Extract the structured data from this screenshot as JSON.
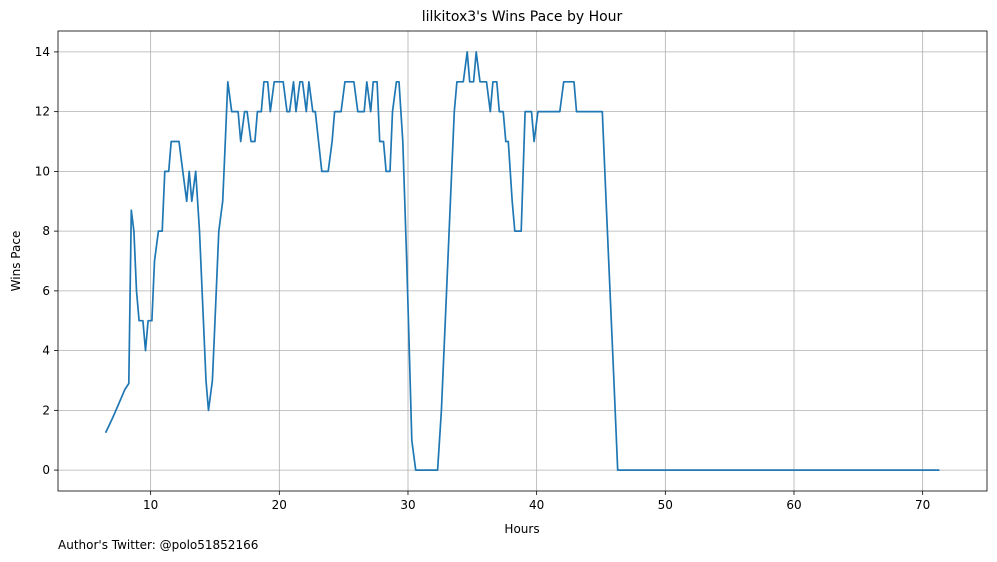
{
  "chart_data": {
    "type": "line",
    "title": "lilkitox3's Wins Pace by Hour",
    "xlabel": "Hours",
    "ylabel": "Wins Pace",
    "xlim": [
      2.8,
      75.0
    ],
    "ylim": [
      -0.7,
      14.7
    ],
    "xticks": [
      10,
      20,
      30,
      40,
      50,
      60,
      70
    ],
    "yticks": [
      0,
      2,
      4,
      6,
      8,
      10,
      12,
      14
    ],
    "grid": true,
    "line_color": "#1f77b4",
    "series": [
      {
        "points": [
          [
            6.5,
            1.25
          ],
          [
            7.0,
            1.7
          ],
          [
            7.5,
            2.2
          ],
          [
            8.0,
            2.7
          ],
          [
            8.3,
            2.9
          ],
          [
            8.5,
            8.7
          ],
          [
            8.7,
            8.0
          ],
          [
            8.9,
            6.0
          ],
          [
            9.1,
            5.0
          ],
          [
            9.4,
            5.0
          ],
          [
            9.6,
            4.0
          ],
          [
            9.8,
            5.0
          ],
          [
            10.1,
            5.0
          ],
          [
            10.3,
            7.0
          ],
          [
            10.6,
            8.0
          ],
          [
            10.9,
            8.0
          ],
          [
            11.1,
            10.0
          ],
          [
            11.4,
            10.0
          ],
          [
            11.6,
            11.0
          ],
          [
            12.2,
            11.0
          ],
          [
            12.5,
            10.0
          ],
          [
            12.8,
            9.0
          ],
          [
            13.0,
            10.0
          ],
          [
            13.2,
            9.0
          ],
          [
            13.5,
            10.0
          ],
          [
            13.8,
            8.0
          ],
          [
            14.1,
            5.0
          ],
          [
            14.3,
            3.0
          ],
          [
            14.5,
            2.0
          ],
          [
            14.8,
            3.0
          ],
          [
            15.0,
            5.0
          ],
          [
            15.3,
            8.0
          ],
          [
            15.6,
            9.0
          ],
          [
            15.8,
            11.0
          ],
          [
            16.0,
            13.0
          ],
          [
            16.3,
            12.0
          ],
          [
            16.8,
            12.0
          ],
          [
            17.0,
            11.0
          ],
          [
            17.3,
            12.0
          ],
          [
            17.5,
            12.0
          ],
          [
            17.8,
            11.0
          ],
          [
            18.1,
            11.0
          ],
          [
            18.3,
            12.0
          ],
          [
            18.6,
            12.0
          ],
          [
            18.8,
            13.0
          ],
          [
            19.1,
            13.0
          ],
          [
            19.3,
            12.0
          ],
          [
            19.6,
            13.0
          ],
          [
            20.3,
            13.0
          ],
          [
            20.6,
            12.0
          ],
          [
            20.8,
            12.0
          ],
          [
            21.1,
            13.0
          ],
          [
            21.3,
            12.0
          ],
          [
            21.6,
            13.0
          ],
          [
            21.8,
            13.0
          ],
          [
            22.1,
            12.0
          ],
          [
            22.3,
            13.0
          ],
          [
            22.6,
            12.0
          ],
          [
            22.8,
            12.0
          ],
          [
            23.3,
            10.0
          ],
          [
            23.8,
            10.0
          ],
          [
            24.1,
            11.0
          ],
          [
            24.3,
            12.0
          ],
          [
            24.8,
            12.0
          ],
          [
            25.1,
            13.0
          ],
          [
            25.8,
            13.0
          ],
          [
            26.1,
            12.0
          ],
          [
            26.6,
            12.0
          ],
          [
            26.8,
            13.0
          ],
          [
            27.1,
            12.0
          ],
          [
            27.3,
            13.0
          ],
          [
            27.6,
            13.0
          ],
          [
            27.8,
            11.0
          ],
          [
            28.1,
            11.0
          ],
          [
            28.3,
            10.0
          ],
          [
            28.6,
            10.0
          ],
          [
            28.8,
            12.0
          ],
          [
            29.1,
            13.0
          ],
          [
            29.3,
            13.0
          ],
          [
            29.6,
            11.0
          ],
          [
            29.9,
            7.0
          ],
          [
            30.1,
            4.0
          ],
          [
            30.3,
            1.0
          ],
          [
            30.6,
            0.0
          ],
          [
            32.3,
            0.0
          ],
          [
            32.6,
            2.0
          ],
          [
            32.9,
            5.0
          ],
          [
            33.3,
            9.0
          ],
          [
            33.6,
            12.0
          ],
          [
            33.8,
            13.0
          ],
          [
            34.1,
            13.0
          ],
          [
            34.3,
            13.0
          ],
          [
            34.6,
            14.0
          ],
          [
            34.8,
            13.0
          ],
          [
            35.1,
            13.0
          ],
          [
            35.3,
            14.0
          ],
          [
            35.6,
            13.0
          ],
          [
            36.1,
            13.0
          ],
          [
            36.4,
            12.0
          ],
          [
            36.6,
            13.0
          ],
          [
            36.9,
            13.0
          ],
          [
            37.1,
            12.0
          ],
          [
            37.4,
            12.0
          ],
          [
            37.6,
            11.0
          ],
          [
            37.8,
            11.0
          ],
          [
            38.1,
            9.0
          ],
          [
            38.3,
            8.0
          ],
          [
            38.8,
            8.0
          ],
          [
            39.1,
            12.0
          ],
          [
            39.6,
            12.0
          ],
          [
            39.8,
            11.0
          ],
          [
            40.1,
            12.0
          ],
          [
            41.8,
            12.0
          ],
          [
            42.1,
            13.0
          ],
          [
            42.9,
            13.0
          ],
          [
            43.1,
            12.0
          ],
          [
            45.1,
            12.0
          ],
          [
            45.4,
            9.0
          ],
          [
            45.7,
            6.0
          ],
          [
            46.0,
            3.0
          ],
          [
            46.3,
            0.0
          ],
          [
            71.3,
            0.0
          ]
        ]
      }
    ]
  },
  "footer": {
    "author_credit": "Author's Twitter: @polo51852166"
  }
}
